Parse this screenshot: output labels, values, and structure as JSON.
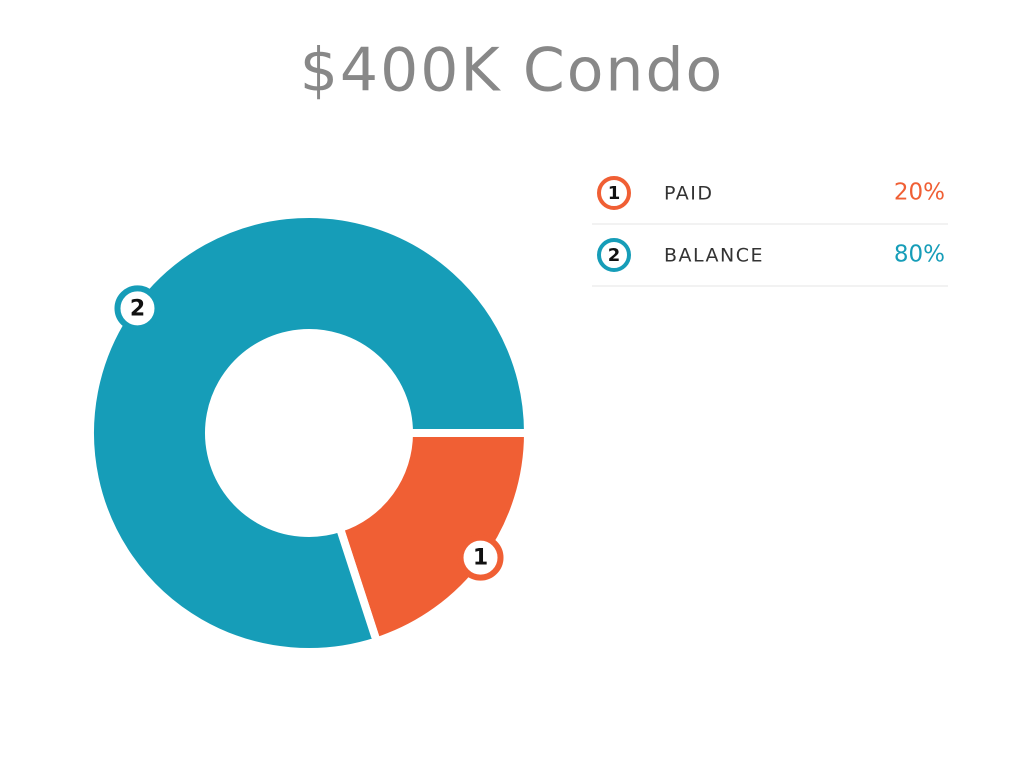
{
  "chart_data": {
    "type": "donut",
    "title": "$400K Condo",
    "categories": [
      "PAID",
      "BALANCE"
    ],
    "index_labels": [
      "1",
      "2"
    ],
    "values": [
      20,
      80
    ],
    "value_labels": [
      "20%",
      "80%"
    ],
    "colors": [
      "#f05f34",
      "#169db8"
    ]
  }
}
